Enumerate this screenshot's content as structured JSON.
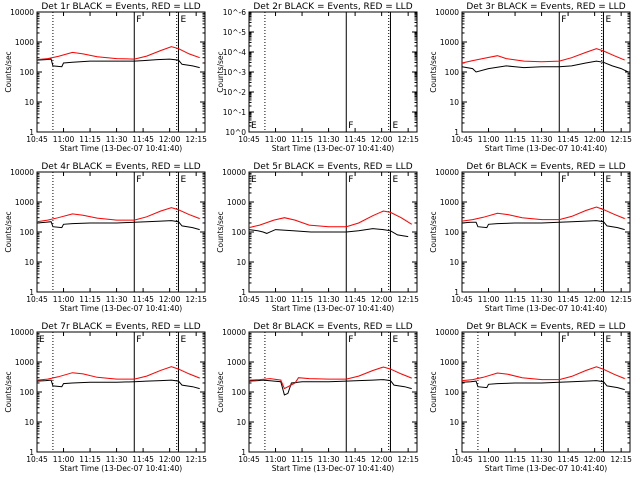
{
  "colors": {
    "events": "#000000",
    "lld": "#ff0000",
    "axis": "#000000",
    "background": "#ffffff"
  },
  "common": {
    "xlabel": "Start Time (13-Dec-07 10:41:40)",
    "ylabel": "Counts/sec",
    "x_ticks": [
      "10:45",
      "11:00",
      "11:15",
      "11:30",
      "11:45",
      "12:00",
      "12:15"
    ],
    "x_tick_minutes": [
      0,
      15,
      30,
      45,
      60,
      75,
      90
    ],
    "y_ticks_log": [
      "1",
      "10",
      "100",
      "1000",
      "10000"
    ]
  },
  "chart_data": [
    {
      "type": "line",
      "title": "Det 1r BLACK = Events, RED = LLD",
      "yscale": "log",
      "ylim": [
        1,
        10000
      ],
      "xlim_minutes": [
        0,
        95
      ],
      "markers": [
        {
          "label": "F",
          "minute": 55
        },
        {
          "label": "E",
          "minute": 80
        }
      ],
      "dotted_minutes": [
        9,
        79
      ],
      "events": [
        [
          0,
          250
        ],
        [
          5,
          260
        ],
        [
          8,
          270
        ],
        [
          9,
          160
        ],
        [
          14,
          150
        ],
        [
          15,
          200
        ],
        [
          20,
          210
        ],
        [
          30,
          230
        ],
        [
          45,
          230
        ],
        [
          55,
          230
        ],
        [
          60,
          240
        ],
        [
          68,
          260
        ],
        [
          75,
          270
        ],
        [
          80,
          250
        ],
        [
          82,
          180
        ],
        [
          88,
          160
        ],
        [
          92,
          140
        ]
      ],
      "lld": [
        [
          0,
          260
        ],
        [
          6,
          280
        ],
        [
          12,
          330
        ],
        [
          20,
          450
        ],
        [
          26,
          400
        ],
        [
          34,
          320
        ],
        [
          45,
          280
        ],
        [
          55,
          270
        ],
        [
          62,
          340
        ],
        [
          70,
          520
        ],
        [
          76,
          700
        ],
        [
          80,
          600
        ],
        [
          86,
          400
        ],
        [
          92,
          300
        ]
      ]
    },
    {
      "type": "line",
      "title": "Det 2r BLACK = Events, RED = LLD",
      "yscale": "log",
      "ylim": [
        1,
        1e-06
      ],
      "xlim_minutes": [
        0,
        95
      ],
      "y_ticks": [
        "10^0",
        "10^-1",
        "10^-2",
        "10^-3",
        "10^-4",
        "10^-5",
        "10^-6"
      ],
      "markers": [
        {
          "label": "E",
          "minute": 0
        },
        {
          "label": "F",
          "minute": 55
        },
        {
          "label": "E",
          "minute": 80
        }
      ],
      "dotted_minutes": [
        9,
        79
      ],
      "events": [],
      "lld": []
    },
    {
      "type": "line",
      "title": "Det 3r BLACK = Events, RED = LLD",
      "yscale": "log",
      "ylim": [
        1,
        10000
      ],
      "xlim_minutes": [
        0,
        95
      ],
      "markers": [
        {
          "label": "F",
          "minute": 55
        },
        {
          "label": "E",
          "minute": 80
        }
      ],
      "dotted_minutes": [
        79
      ],
      "events": [
        [
          0,
          150
        ],
        [
          6,
          130
        ],
        [
          8,
          100
        ],
        [
          15,
          130
        ],
        [
          25,
          160
        ],
        [
          30,
          150
        ],
        [
          35,
          140
        ],
        [
          45,
          150
        ],
        [
          55,
          150
        ],
        [
          62,
          160
        ],
        [
          70,
          200
        ],
        [
          76,
          230
        ],
        [
          80,
          210
        ],
        [
          85,
          160
        ],
        [
          90,
          130
        ],
        [
          94,
          100
        ]
      ],
      "lld": [
        [
          0,
          200
        ],
        [
          6,
          240
        ],
        [
          14,
          300
        ],
        [
          20,
          350
        ],
        [
          25,
          280
        ],
        [
          35,
          230
        ],
        [
          45,
          220
        ],
        [
          55,
          230
        ],
        [
          62,
          300
        ],
        [
          70,
          450
        ],
        [
          76,
          600
        ],
        [
          80,
          500
        ],
        [
          86,
          350
        ],
        [
          92,
          250
        ]
      ]
    },
    {
      "type": "line",
      "title": "Det 4r BLACK = Events, RED = LLD",
      "yscale": "log",
      "ylim": [
        1,
        10000
      ],
      "xlim_minutes": [
        0,
        95
      ],
      "markers": [
        {
          "label": "F",
          "minute": 55
        },
        {
          "label": "E",
          "minute": 80
        }
      ],
      "dotted_minutes": [
        9,
        79
      ],
      "events": [
        [
          0,
          200
        ],
        [
          5,
          210
        ],
        [
          8,
          220
        ],
        [
          9,
          150
        ],
        [
          14,
          140
        ],
        [
          15,
          180
        ],
        [
          20,
          190
        ],
        [
          30,
          200
        ],
        [
          45,
          200
        ],
        [
          55,
          210
        ],
        [
          62,
          220
        ],
        [
          70,
          230
        ],
        [
          76,
          240
        ],
        [
          80,
          220
        ],
        [
          82,
          160
        ],
        [
          88,
          140
        ],
        [
          92,
          120
        ]
      ],
      "lld": [
        [
          0,
          220
        ],
        [
          6,
          250
        ],
        [
          12,
          300
        ],
        [
          20,
          400
        ],
        [
          26,
          360
        ],
        [
          34,
          290
        ],
        [
          45,
          250
        ],
        [
          55,
          250
        ],
        [
          62,
          320
        ],
        [
          70,
          500
        ],
        [
          76,
          650
        ],
        [
          80,
          550
        ],
        [
          86,
          380
        ],
        [
          92,
          280
        ]
      ]
    },
    {
      "type": "line",
      "title": "Det 5r BLACK = Events, RED = LLD",
      "yscale": "log",
      "ylim": [
        1,
        10000
      ],
      "xlim_minutes": [
        0,
        95
      ],
      "markers": [
        {
          "label": "E",
          "minute": 0
        },
        {
          "label": "F",
          "minute": 55
        },
        {
          "label": "E",
          "minute": 80
        }
      ],
      "dotted_minutes": [
        79
      ],
      "events": [
        [
          0,
          120
        ],
        [
          5,
          110
        ],
        [
          8,
          100
        ],
        [
          10,
          90
        ],
        [
          15,
          120
        ],
        [
          25,
          110
        ],
        [
          35,
          100
        ],
        [
          45,
          100
        ],
        [
          55,
          100
        ],
        [
          62,
          110
        ],
        [
          70,
          130
        ],
        [
          76,
          120
        ],
        [
          80,
          110
        ],
        [
          84,
          80
        ],
        [
          90,
          70
        ]
      ],
      "lld": [
        [
          0,
          140
        ],
        [
          6,
          170
        ],
        [
          14,
          250
        ],
        [
          20,
          300
        ],
        [
          26,
          250
        ],
        [
          34,
          170
        ],
        [
          45,
          150
        ],
        [
          55,
          150
        ],
        [
          62,
          200
        ],
        [
          70,
          350
        ],
        [
          76,
          500
        ],
        [
          80,
          450
        ],
        [
          86,
          300
        ],
        [
          92,
          180
        ]
      ]
    },
    {
      "type": "line",
      "title": "Det 6r BLACK = Events, RED = LLD",
      "yscale": "log",
      "ylim": [
        1,
        10000
      ],
      "xlim_minutes": [
        0,
        95
      ],
      "markers": [
        {
          "label": "F",
          "minute": 55
        },
        {
          "label": "E",
          "minute": 80
        }
      ],
      "dotted_minutes": [
        79
      ],
      "events": [
        [
          0,
          200
        ],
        [
          5,
          210
        ],
        [
          8,
          210
        ],
        [
          9,
          150
        ],
        [
          14,
          140
        ],
        [
          15,
          180
        ],
        [
          20,
          190
        ],
        [
          30,
          200
        ],
        [
          45,
          200
        ],
        [
          55,
          210
        ],
        [
          62,
          220
        ],
        [
          70,
          230
        ],
        [
          76,
          240
        ],
        [
          80,
          220
        ],
        [
          82,
          160
        ],
        [
          88,
          140
        ],
        [
          92,
          120
        ]
      ],
      "lld": [
        [
          0,
          230
        ],
        [
          6,
          260
        ],
        [
          12,
          310
        ],
        [
          20,
          420
        ],
        [
          26,
          380
        ],
        [
          34,
          300
        ],
        [
          45,
          260
        ],
        [
          55,
          260
        ],
        [
          62,
          330
        ],
        [
          70,
          520
        ],
        [
          76,
          680
        ],
        [
          80,
          560
        ],
        [
          86,
          390
        ],
        [
          92,
          280
        ]
      ]
    },
    {
      "type": "line",
      "title": "Det 7r BLACK = Events, RED = LLD",
      "yscale": "log",
      "ylim": [
        1,
        10000
      ],
      "xlim_minutes": [
        0,
        95
      ],
      "markers": [
        {
          "label": "E",
          "minute": 0
        },
        {
          "label": "F",
          "minute": 55
        },
        {
          "label": "E",
          "minute": 80
        }
      ],
      "dotted_minutes": [
        9,
        79
      ],
      "events": [
        [
          0,
          230
        ],
        [
          5,
          240
        ],
        [
          8,
          250
        ],
        [
          9,
          160
        ],
        [
          14,
          150
        ],
        [
          15,
          190
        ],
        [
          20,
          200
        ],
        [
          30,
          210
        ],
        [
          45,
          210
        ],
        [
          55,
          220
        ],
        [
          62,
          230
        ],
        [
          70,
          240
        ],
        [
          76,
          250
        ],
        [
          80,
          230
        ],
        [
          82,
          170
        ],
        [
          88,
          150
        ],
        [
          92,
          130
        ]
      ],
      "lld": [
        [
          0,
          250
        ],
        [
          6,
          270
        ],
        [
          12,
          320
        ],
        [
          20,
          440
        ],
        [
          26,
          400
        ],
        [
          34,
          310
        ],
        [
          45,
          270
        ],
        [
          55,
          270
        ],
        [
          62,
          340
        ],
        [
          70,
          530
        ],
        [
          76,
          700
        ],
        [
          80,
          580
        ],
        [
          86,
          400
        ],
        [
          92,
          290
        ]
      ]
    },
    {
      "type": "line",
      "title": "Det 8r BLACK = Events, RED = LLD",
      "yscale": "log",
      "ylim": [
        1,
        10000
      ],
      "xlim_minutes": [
        0,
        95
      ],
      "markers": [
        {
          "label": "F",
          "minute": 55
        },
        {
          "label": "E",
          "minute": 80
        }
      ],
      "dotted_minutes": [
        9,
        79
      ],
      "events": [
        [
          0,
          230
        ],
        [
          5,
          240
        ],
        [
          8,
          250
        ],
        [
          18,
          220
        ],
        [
          20,
          80
        ],
        [
          22,
          90
        ],
        [
          24,
          200
        ],
        [
          30,
          220
        ],
        [
          45,
          220
        ],
        [
          55,
          230
        ],
        [
          62,
          240
        ],
        [
          70,
          250
        ],
        [
          76,
          260
        ],
        [
          80,
          240
        ],
        [
          82,
          170
        ],
        [
          88,
          150
        ],
        [
          92,
          130
        ]
      ],
      "lld": [
        [
          0,
          250
        ],
        [
          6,
          260
        ],
        [
          12,
          280
        ],
        [
          18,
          250
        ],
        [
          20,
          130
        ],
        [
          26,
          200
        ],
        [
          28,
          300
        ],
        [
          34,
          280
        ],
        [
          45,
          270
        ],
        [
          55,
          270
        ],
        [
          62,
          340
        ],
        [
          70,
          520
        ],
        [
          76,
          680
        ],
        [
          80,
          580
        ],
        [
          86,
          400
        ],
        [
          92,
          290
        ]
      ]
    },
    {
      "type": "line",
      "title": "Det 9r BLACK = Events, RED = LLD",
      "yscale": "log",
      "ylim": [
        1,
        10000
      ],
      "xlim_minutes": [
        0,
        95
      ],
      "markers": [
        {
          "label": "F",
          "minute": 55
        },
        {
          "label": "E",
          "minute": 80
        }
      ],
      "dotted_minutes": [
        9,
        79
      ],
      "events": [
        [
          0,
          210
        ],
        [
          5,
          220
        ],
        [
          8,
          230
        ],
        [
          9,
          150
        ],
        [
          14,
          140
        ],
        [
          15,
          180
        ],
        [
          20,
          190
        ],
        [
          30,
          200
        ],
        [
          45,
          200
        ],
        [
          55,
          210
        ],
        [
          62,
          220
        ],
        [
          70,
          230
        ],
        [
          76,
          240
        ],
        [
          80,
          220
        ],
        [
          82,
          160
        ],
        [
          88,
          140
        ],
        [
          92,
          120
        ]
      ],
      "lld": [
        [
          0,
          240
        ],
        [
          6,
          260
        ],
        [
          12,
          310
        ],
        [
          20,
          430
        ],
        [
          26,
          390
        ],
        [
          34,
          300
        ],
        [
          45,
          260
        ],
        [
          55,
          260
        ],
        [
          62,
          330
        ],
        [
          70,
          520
        ],
        [
          76,
          690
        ],
        [
          80,
          570
        ],
        [
          86,
          390
        ],
        [
          92,
          280
        ]
      ]
    }
  ]
}
